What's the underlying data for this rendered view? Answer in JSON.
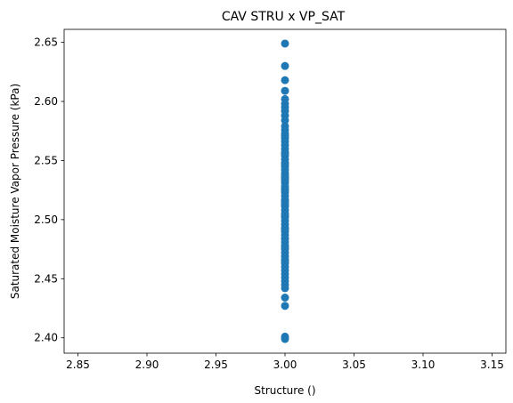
{
  "chart_data": {
    "type": "scatter",
    "title": "CAV STRU x VP_SAT",
    "xlabel": "Structure ()",
    "ylabel": "Saturated Moisture Vapor Pressure (kPa)",
    "xlim": [
      2.84,
      3.16
    ],
    "ylim": [
      2.387,
      2.661
    ],
    "xticks": [
      2.85,
      2.9,
      2.95,
      3.0,
      3.05,
      3.1,
      3.15
    ],
    "xtick_labels": [
      "2.85",
      "2.90",
      "2.95",
      "3.00",
      "3.05",
      "3.10",
      "3.15"
    ],
    "yticks": [
      2.4,
      2.45,
      2.5,
      2.55,
      2.6,
      2.65
    ],
    "ytick_labels": [
      "2.40",
      "2.45",
      "2.50",
      "2.55",
      "2.60",
      "2.65"
    ],
    "grid": false,
    "legend": false,
    "marker_color": "#1f77b4",
    "series": [
      {
        "x": [
          3,
          3,
          3,
          3,
          3,
          3,
          3,
          3,
          3,
          3,
          3,
          3,
          3,
          3,
          3,
          3,
          3,
          3,
          3,
          3,
          3,
          3,
          3,
          3,
          3,
          3,
          3,
          3,
          3,
          3,
          3,
          3,
          3,
          3,
          3,
          3,
          3,
          3,
          3,
          3,
          3,
          3,
          3,
          3,
          3,
          3,
          3,
          3,
          3,
          3,
          3,
          3,
          3,
          3,
          3,
          3,
          3,
          3,
          3,
          3,
          3,
          3,
          3,
          3,
          3,
          3,
          3,
          3,
          3,
          3,
          3,
          3,
          3,
          3
        ],
        "y": [
          2.649,
          2.63,
          2.618,
          2.609,
          2.602,
          2.595,
          2.592,
          2.588,
          2.584,
          2.576,
          2.573,
          2.569,
          2.566,
          2.563,
          2.56,
          2.557,
          2.554,
          2.551,
          2.548,
          2.545,
          2.542,
          2.539,
          2.536,
          2.533,
          2.531,
          2.528,
          2.525,
          2.523,
          2.52,
          2.517,
          2.514,
          2.511,
          2.508,
          2.505,
          2.502,
          2.499,
          2.496,
          2.493,
          2.49,
          2.487,
          2.484,
          2.481,
          2.478,
          2.475,
          2.472,
          2.469,
          2.466,
          2.463,
          2.46,
          2.457,
          2.454,
          2.451,
          2.448,
          2.445,
          2.442,
          2.434,
          2.427,
          2.401,
          2.399,
          2.526,
          2.538,
          2.547,
          2.556,
          2.512,
          2.492,
          2.476,
          2.465,
          2.571,
          2.579,
          2.598,
          2.535,
          2.516,
          2.503,
          2.484
        ]
      }
    ]
  }
}
